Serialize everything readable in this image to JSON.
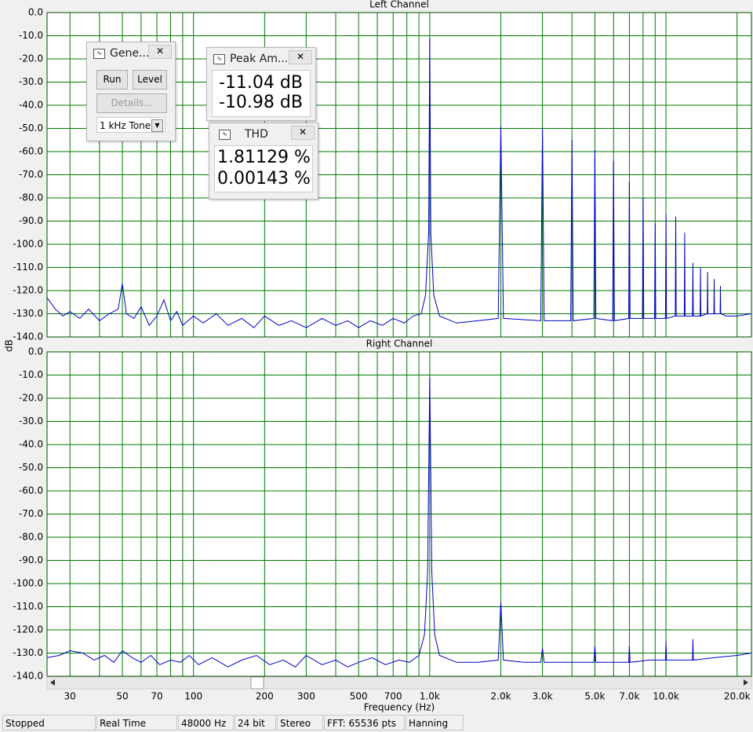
{
  "chart_data": [
    {
      "type": "line",
      "title": "Left Channel",
      "y_label": "dB",
      "log_x": true,
      "grid": true,
      "color": "#0000c8",
      "xlim": [
        24,
        23000
      ],
      "ylim": [
        -140,
        0
      ],
      "yticks": [
        {
          "value": 0,
          "label": "0.0"
        },
        {
          "value": -10,
          "label": "-10.0"
        },
        {
          "value": -20,
          "label": "-20.0"
        },
        {
          "value": -30,
          "label": "-30.0"
        },
        {
          "value": -40,
          "label": "-40.0"
        },
        {
          "value": -50,
          "label": "-50.0"
        },
        {
          "value": -60,
          "label": "-60.0"
        },
        {
          "value": -70,
          "label": "-70.0"
        },
        {
          "value": -80,
          "label": "-80.0"
        },
        {
          "value": -90,
          "label": "-90.0"
        },
        {
          "value": -100,
          "label": "-100.0"
        },
        {
          "value": -110,
          "label": "-110.0"
        },
        {
          "value": -120,
          "label": "-120.0"
        },
        {
          "value": -130,
          "label": "-130.0"
        },
        {
          "value": -140,
          "label": "-140.0"
        }
      ],
      "x": [
        24,
        26,
        28,
        30,
        33,
        36,
        40,
        44,
        48,
        50,
        52,
        56,
        60,
        65,
        70,
        75,
        80,
        85,
        90,
        100,
        110,
        125,
        140,
        160,
        180,
        200,
        230,
        260,
        300,
        350,
        400,
        450,
        500,
        560,
        630,
        700,
        780,
        850,
        920,
        960,
        990,
        1000,
        1010,
        1040,
        1100,
        1300,
        1600,
        1950,
        2000,
        2050,
        2950,
        3000,
        3050,
        3950,
        4000,
        4050,
        4950,
        5000,
        5050,
        5950,
        6000,
        6050,
        6950,
        7000,
        7050,
        7950,
        8000,
        8050,
        8950,
        9000,
        9050,
        9950,
        10000,
        10050,
        10950,
        11000,
        11050,
        11950,
        12000,
        12050,
        12950,
        13000,
        13050,
        13950,
        14000,
        14050,
        14950,
        15000,
        15050,
        15950,
        16000,
        16050,
        16950,
        17000,
        17050,
        18000,
        20000,
        23000
      ],
      "values": [
        -123,
        -128,
        -131,
        -129,
        -132,
        -128,
        -133,
        -130,
        -128,
        -117,
        -130,
        -132,
        -127,
        -135,
        -131,
        -124,
        -133,
        -129,
        -135,
        -131,
        -134,
        -130,
        -135,
        -132,
        -136,
        -131,
        -135,
        -133,
        -136,
        -132,
        -135,
        -133,
        -136,
        -133,
        -135,
        -132,
        -134,
        -131,
        -130,
        -122,
        -95,
        -11,
        -95,
        -122,
        -131,
        -134,
        -133,
        -132,
        -49,
        -132,
        -133,
        -50,
        -133,
        -133,
        -55,
        -133,
        -132,
        -59,
        -132,
        -133,
        -64,
        -133,
        -132,
        -73,
        -132,
        -132,
        -80,
        -132,
        -132,
        -91,
        -132,
        -132,
        -87,
        -132,
        -131,
        -88,
        -131,
        -131,
        -95,
        -131,
        -131,
        -108,
        -131,
        -131,
        -110,
        -131,
        -130,
        -112,
        -130,
        -130,
        -115,
        -130,
        -130,
        -118,
        -130,
        -131,
        -131,
        -130
      ]
    },
    {
      "type": "line",
      "title": "Right Channel",
      "x_label": "Frequency (Hz)",
      "log_x": true,
      "grid": true,
      "color": "#0000c8",
      "xlim": [
        24,
        23000
      ],
      "ylim": [
        -140,
        0
      ],
      "yticks": [
        {
          "value": 0,
          "label": "0.0"
        },
        {
          "value": -10,
          "label": "-10.0"
        },
        {
          "value": -20,
          "label": "-20.0"
        },
        {
          "value": -30,
          "label": "-30.0"
        },
        {
          "value": -40,
          "label": "-40.0"
        },
        {
          "value": -50,
          "label": "-50.0"
        },
        {
          "value": -60,
          "label": "-60.0"
        },
        {
          "value": -70,
          "label": "-70.0"
        },
        {
          "value": -80,
          "label": "-80.0"
        },
        {
          "value": -90,
          "label": "-90.0"
        },
        {
          "value": -100,
          "label": "-100.0"
        },
        {
          "value": -110,
          "label": "-110.0"
        },
        {
          "value": -120,
          "label": "-120.0"
        },
        {
          "value": -130,
          "label": "-130.0"
        },
        {
          "value": -140,
          "label": "-140.0"
        }
      ],
      "xticks": [
        30,
        50,
        70,
        100,
        200,
        300,
        500,
        700,
        {
          "value": 1000,
          "label": "1.0k"
        },
        {
          "value": 2000,
          "label": "2.0k"
        },
        {
          "value": 3000,
          "label": "3.0k"
        },
        {
          "value": 5000,
          "label": "5.0k"
        },
        {
          "value": 7000,
          "label": "7.0k"
        },
        {
          "value": 10000,
          "label": "10.0k"
        },
        {
          "value": 20000,
          "label": "20.0k"
        }
      ],
      "xminor": [
        40,
        60,
        80,
        90,
        400,
        600,
        800,
        900,
        4000,
        6000,
        8000,
        9000
      ],
      "x": [
        24,
        27,
        30,
        34,
        38,
        42,
        46,
        50,
        55,
        60,
        66,
        72,
        80,
        88,
        96,
        105,
        120,
        140,
        160,
        185,
        210,
        240,
        270,
        300,
        350,
        400,
        450,
        500,
        570,
        650,
        740,
        820,
        900,
        950,
        980,
        1000,
        1020,
        1050,
        1100,
        1300,
        1600,
        1950,
        2000,
        2050,
        2500,
        2950,
        3000,
        3050,
        4000,
        4950,
        5000,
        5050,
        6000,
        6950,
        7000,
        7050,
        8500,
        9950,
        10000,
        10050,
        11500,
        12950,
        13000,
        13050,
        16000,
        20000,
        23000
      ],
      "values": [
        -132,
        -131,
        -129,
        -130,
        -133,
        -131,
        -134,
        -129,
        -132,
        -134,
        -131,
        -135,
        -133,
        -134,
        -131,
        -135,
        -132,
        -136,
        -133,
        -131,
        -135,
        -133,
        -136,
        -131,
        -135,
        -133,
        -136,
        -134,
        -132,
        -135,
        -133,
        -134,
        -131,
        -122,
        -95,
        -11,
        -95,
        -122,
        -131,
        -134,
        -134,
        -133,
        -108,
        -133,
        -134,
        -134,
        -128,
        -134,
        -134,
        -134,
        -127,
        -134,
        -134,
        -134,
        -127,
        -134,
        -133,
        -133,
        -125,
        -133,
        -133,
        -133,
        -124,
        -133,
        -132,
        -131,
        -130
      ]
    }
  ],
  "generator": {
    "title": "Gene...",
    "buttons": [
      "Run",
      "Level",
      "Details..."
    ],
    "signal": "1 kHz Tone"
  },
  "peak_amplitude": {
    "title": "Peak Am...",
    "readings": [
      "-11.04 dB",
      "-10.98 dB"
    ]
  },
  "thd": {
    "title": "THD",
    "readings": [
      "1.81129 %",
      "0.00143 %"
    ]
  },
  "status_bar": [
    "Stopped",
    "Real Time",
    "48000 Hz",
    "24 bit",
    "Stereo",
    "FFT: 65536 pts",
    "Hanning"
  ]
}
